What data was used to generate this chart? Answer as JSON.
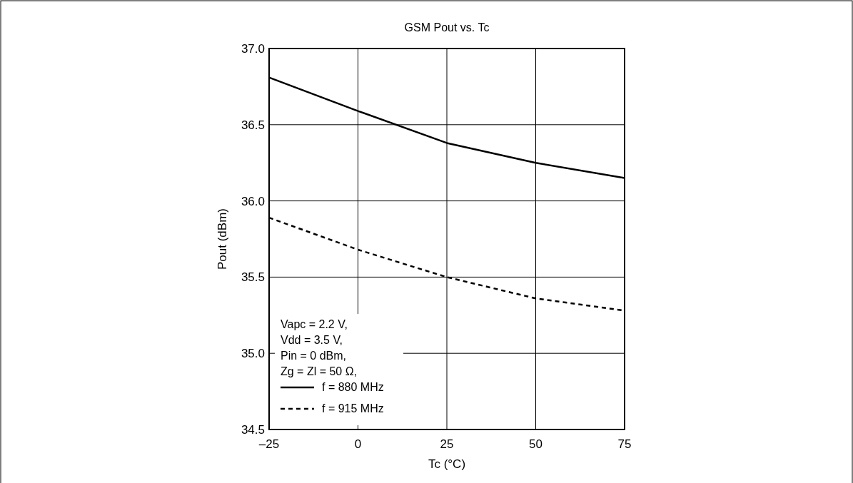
{
  "chart_data": {
    "type": "line",
    "title": "GSM  Pout vs. Tc",
    "xlabel": "Tc (°C)",
    "ylabel": "Pout (dBm)",
    "x": [
      -25,
      0,
      25,
      50,
      75
    ],
    "series": [
      {
        "name": "f = 880 MHz",
        "color": "#000000",
        "line_style": "solid",
        "values": [
          36.81,
          36.59,
          36.38,
          36.25,
          36.15
        ]
      },
      {
        "name": "f = 915 MHz",
        "color": "#000000",
        "line_style": "dashed",
        "values": [
          35.89,
          35.68,
          35.5,
          35.36,
          35.28
        ]
      }
    ],
    "xlim": [
      -25,
      75
    ],
    "xticks": [
      {
        "value": -25,
        "label": "–25"
      },
      0,
      25,
      50,
      75
    ],
    "ylim": [
      34.5,
      37
    ],
    "yticks": [
      {
        "value": 34.5,
        "label": "34.5"
      },
      {
        "value": 35,
        "label": "35.0"
      },
      {
        "value": 35.5,
        "label": "35.5"
      },
      {
        "value": 36,
        "label": "36.0"
      },
      {
        "value": 36.5,
        "label": "36.5"
      },
      {
        "value": 37,
        "label": "37.0"
      }
    ],
    "grid": true,
    "legend": "bottom left",
    "marker": "none",
    "annotations": [
      "Vapc = 2.2 V,",
      "Vdd = 3.5 V,",
      "Pin = 0 dBm,",
      "Zg = Zl = 50 Ω,"
    ]
  }
}
